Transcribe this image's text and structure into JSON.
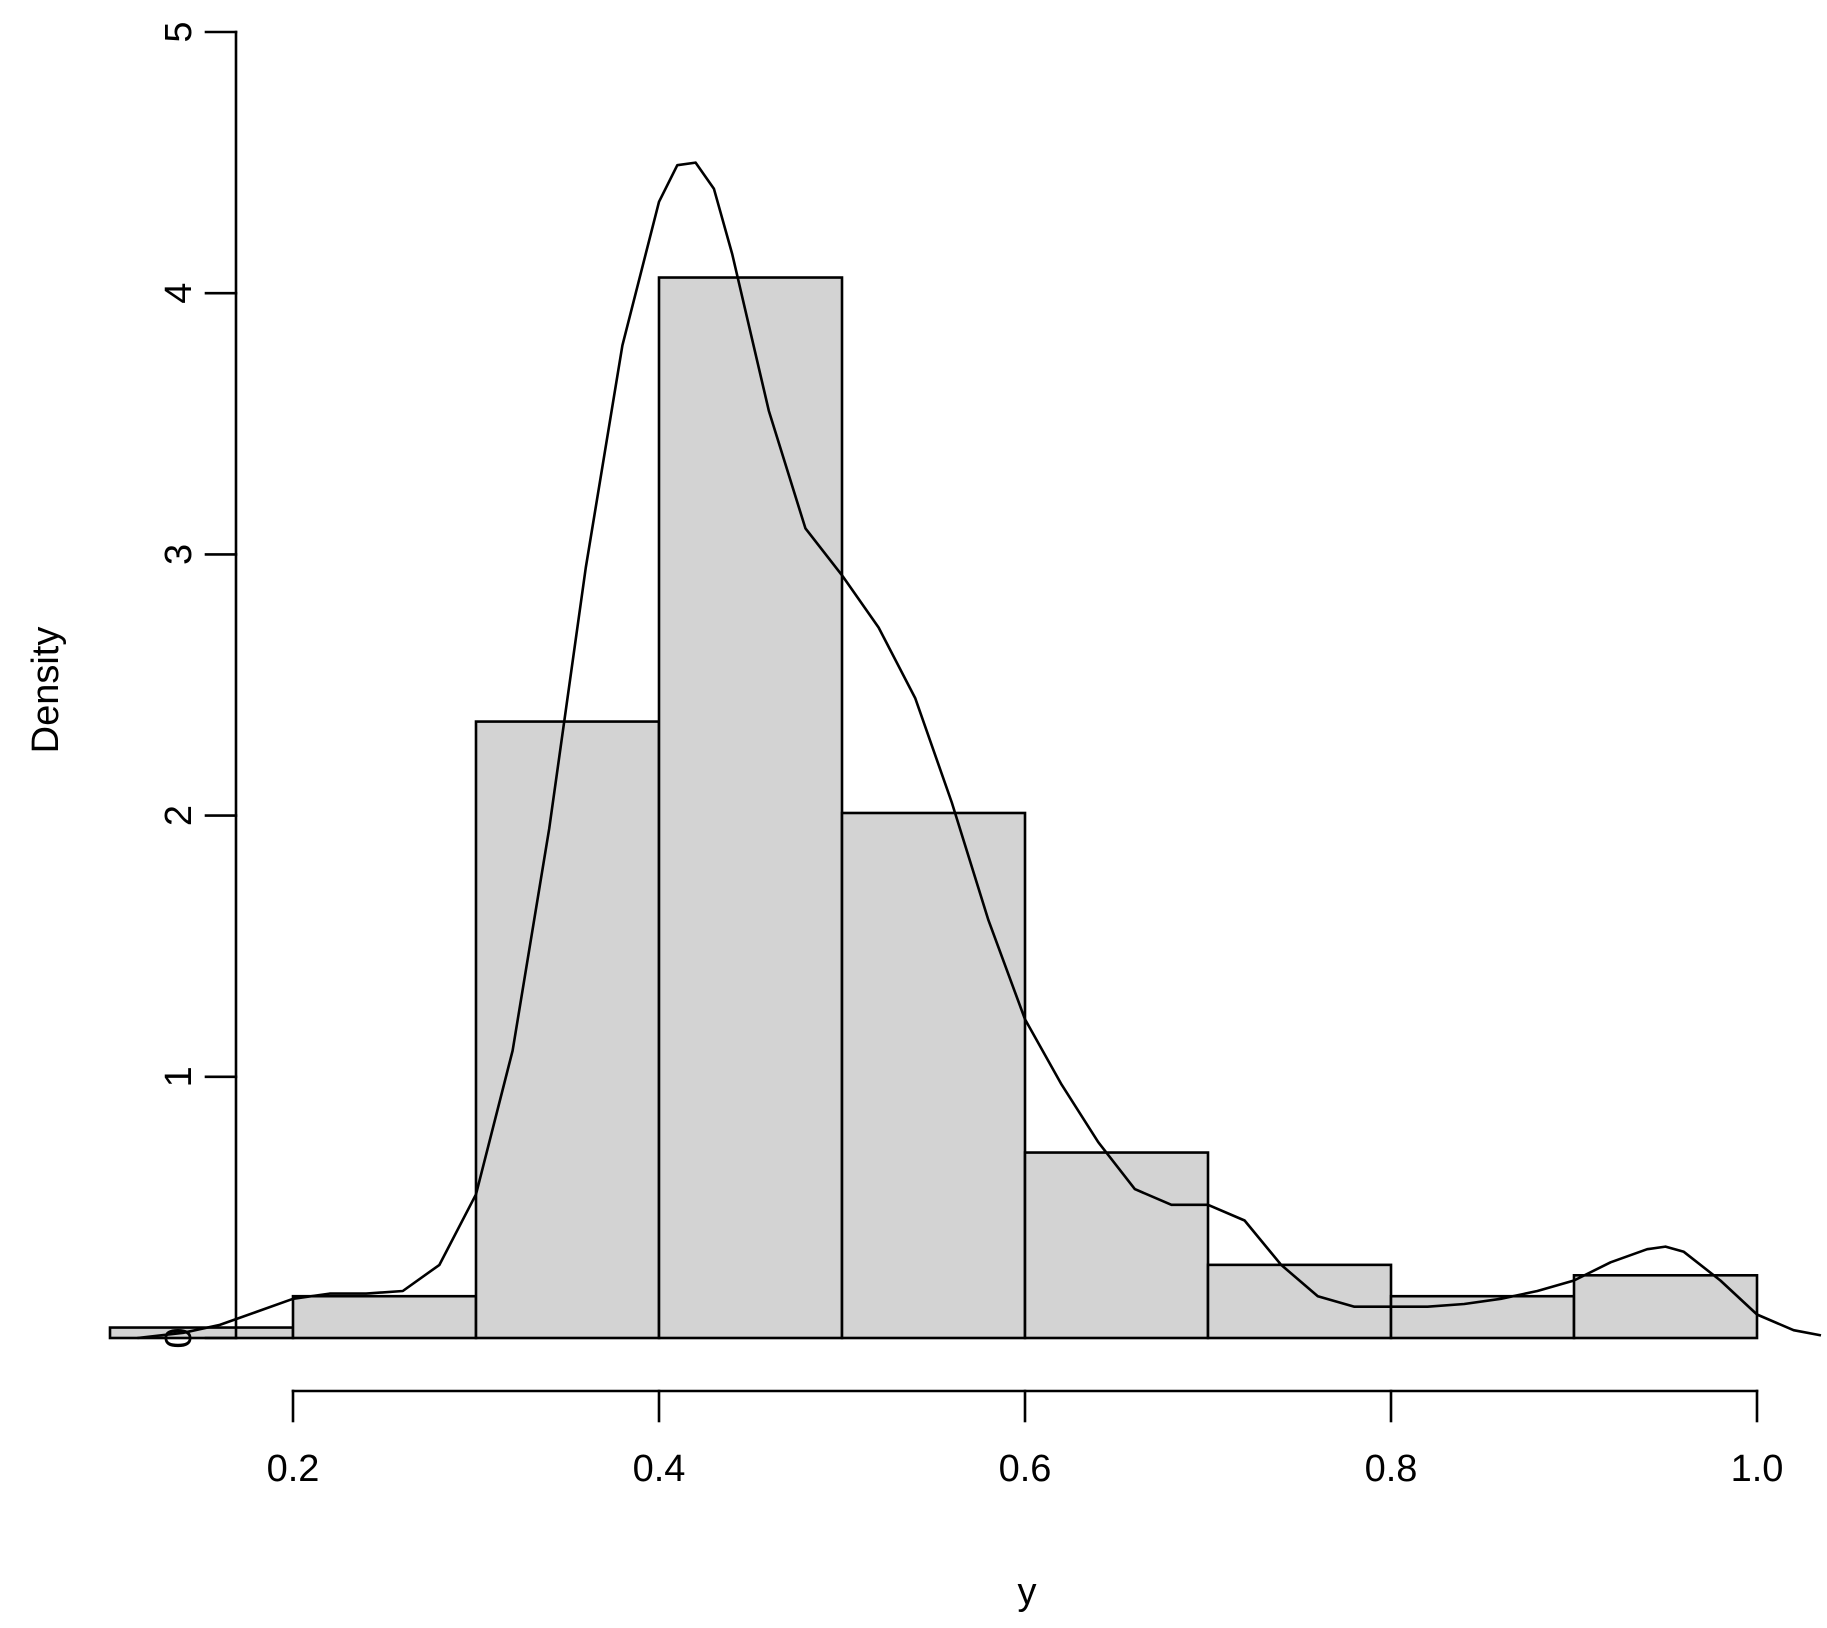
{
  "chart_data": {
    "type": "bar",
    "subtype": "histogram-with-density",
    "title": "",
    "xlabel": "y",
    "ylabel": "Density",
    "xlim": [
      0.1,
      1.05
    ],
    "ylim": [
      0,
      5
    ],
    "x_ticks": [
      {
        "value": 0.2,
        "label": "0.2"
      },
      {
        "value": 0.4,
        "label": "0.4"
      },
      {
        "value": 0.6,
        "label": "0.6"
      },
      {
        "value": 0.8,
        "label": "0.8"
      },
      {
        "value": 1.0,
        "label": "1.0"
      }
    ],
    "y_ticks": [
      {
        "value": 0,
        "label": "0"
      },
      {
        "value": 1,
        "label": "1"
      },
      {
        "value": 2,
        "label": "2"
      },
      {
        "value": 3,
        "label": "3"
      },
      {
        "value": 4,
        "label": "4"
      },
      {
        "value": 5,
        "label": "5"
      }
    ],
    "bins": [
      {
        "start": 0.1,
        "end": 0.2,
        "density": 0.04
      },
      {
        "start": 0.2,
        "end": 0.3,
        "density": 0.16
      },
      {
        "start": 0.3,
        "end": 0.4,
        "density": 2.36
      },
      {
        "start": 0.4,
        "end": 0.5,
        "density": 4.06
      },
      {
        "start": 0.5,
        "end": 0.6,
        "density": 2.01
      },
      {
        "start": 0.6,
        "end": 0.7,
        "density": 0.71
      },
      {
        "start": 0.7,
        "end": 0.8,
        "density": 0.28
      },
      {
        "start": 0.8,
        "end": 0.9,
        "density": 0.16
      },
      {
        "start": 0.9,
        "end": 1.0,
        "density": 0.24
      }
    ],
    "density_curve": {
      "x": [
        0.115,
        0.14,
        0.16,
        0.18,
        0.2,
        0.22,
        0.24,
        0.26,
        0.28,
        0.3,
        0.32,
        0.34,
        0.36,
        0.38,
        0.4,
        0.41,
        0.42,
        0.43,
        0.44,
        0.46,
        0.48,
        0.5,
        0.52,
        0.54,
        0.56,
        0.58,
        0.6,
        0.62,
        0.64,
        0.66,
        0.68,
        0.7,
        0.72,
        0.74,
        0.76,
        0.78,
        0.8,
        0.82,
        0.84,
        0.86,
        0.88,
        0.9,
        0.92,
        0.94,
        0.95,
        0.96,
        0.98,
        1.0,
        1.02,
        1.035
      ],
      "y": [
        0.0,
        0.02,
        0.05,
        0.1,
        0.15,
        0.17,
        0.17,
        0.18,
        0.28,
        0.55,
        1.1,
        1.95,
        2.95,
        3.8,
        4.35,
        4.49,
        4.5,
        4.4,
        4.15,
        3.55,
        3.1,
        2.92,
        2.72,
        2.45,
        2.05,
        1.6,
        1.22,
        0.97,
        0.75,
        0.57,
        0.51,
        0.51,
        0.45,
        0.28,
        0.16,
        0.12,
        0.12,
        0.12,
        0.13,
        0.15,
        0.18,
        0.22,
        0.29,
        0.34,
        0.35,
        0.33,
        0.22,
        0.09,
        0.03,
        0.01
      ]
    },
    "colors": {
      "bar_fill": "#d3d3d3",
      "stroke": "#000000",
      "background": "#ffffff"
    },
    "grid": false,
    "legend": "none"
  }
}
